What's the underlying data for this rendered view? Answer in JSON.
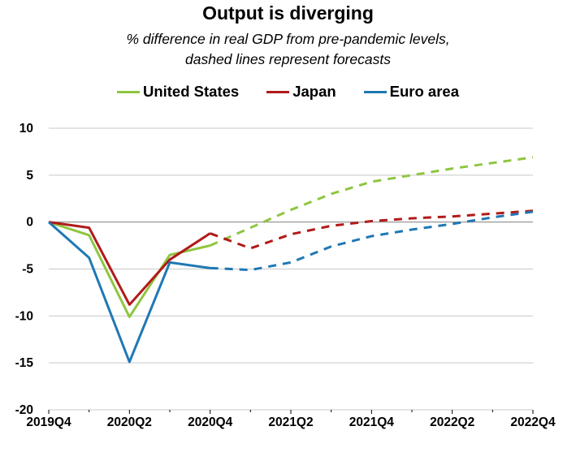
{
  "chart_data": {
    "type": "line",
    "title": "Output is diverging",
    "subtitle_lines": [
      "% difference in real GDP from pre-pandemic levels,",
      "dashed lines represent forecasts"
    ],
    "xlabel": "",
    "ylabel": "",
    "ylim": [
      -20,
      10
    ],
    "y_ticks": [
      10,
      5,
      0,
      -5,
      -10,
      -15,
      -20
    ],
    "x_tick_labels": [
      "2019Q4",
      "2020Q2",
      "2020Q4",
      "2021Q2",
      "2021Q4",
      "2022Q2",
      "2022Q4"
    ],
    "x": [
      "2019Q4",
      "2020Q1",
      "2020Q2",
      "2020Q3",
      "2020Q4",
      "2021Q1",
      "2021Q2",
      "2021Q3",
      "2021Q4",
      "2022Q1",
      "2022Q2",
      "2022Q3",
      "2022Q4"
    ],
    "actual_through": "2020Q4",
    "grid": true,
    "legend_position": "top",
    "series": [
      {
        "name": "United States",
        "color": "#8ec640",
        "values": [
          0,
          -1.4,
          -10.1,
          -3.5,
          -2.5,
          -0.6,
          1.3,
          3.0,
          4.3,
          5.0,
          5.7,
          6.3,
          6.9
        ]
      },
      {
        "name": "Japan",
        "color": "#b11a1a",
        "values": [
          0,
          -0.6,
          -8.8,
          -4.0,
          -1.2,
          -2.8,
          -1.3,
          -0.4,
          0.1,
          0.4,
          0.6,
          0.9,
          1.2
        ]
      },
      {
        "name": "Euro area",
        "color": "#1f78b4",
        "values": [
          0,
          -3.8,
          -14.9,
          -4.3,
          -4.9,
          -5.1,
          -4.3,
          -2.6,
          -1.5,
          -0.8,
          -0.2,
          0.5,
          1.1
        ]
      }
    ]
  }
}
